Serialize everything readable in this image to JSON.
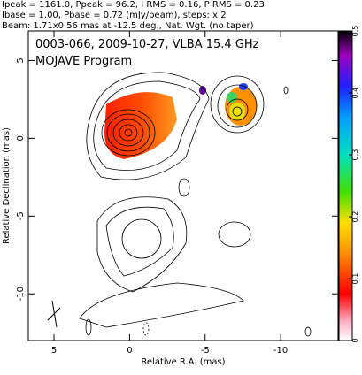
{
  "chart_data": {
    "type": "image",
    "header": [
      "Ipeak = 1161.0, Ppeak = 96.2, I RMS = 0.16, P RMS = 0.23",
      "Ibase = 1.00, Pbase = 0.72 (mJy/beam), steps: x 2",
      "Beam: 1.71x0.56 mas at -12.5 deg., Nat. Wgt. (no taper)"
    ],
    "title": "0003-066, 2009-10-27, VLBA 15.4 GHz",
    "subtitle": "MOJAVE Program",
    "x_label": "Relative R.A. (mas)",
    "y_label": "Relative Declination (mas)",
    "xlim": [
      6.7,
      -13.8
    ],
    "xticks": [
      5,
      0,
      -5,
      -10
    ],
    "ylim": [
      -13,
      6.9
    ],
    "yticks": [
      5,
      0,
      -5,
      -10
    ],
    "colorbar_lim": [
      0,
      0.5
    ],
    "colorbar_ticks": [
      0,
      0.1,
      0.2,
      0.3,
      0.4,
      0.5
    ]
  }
}
